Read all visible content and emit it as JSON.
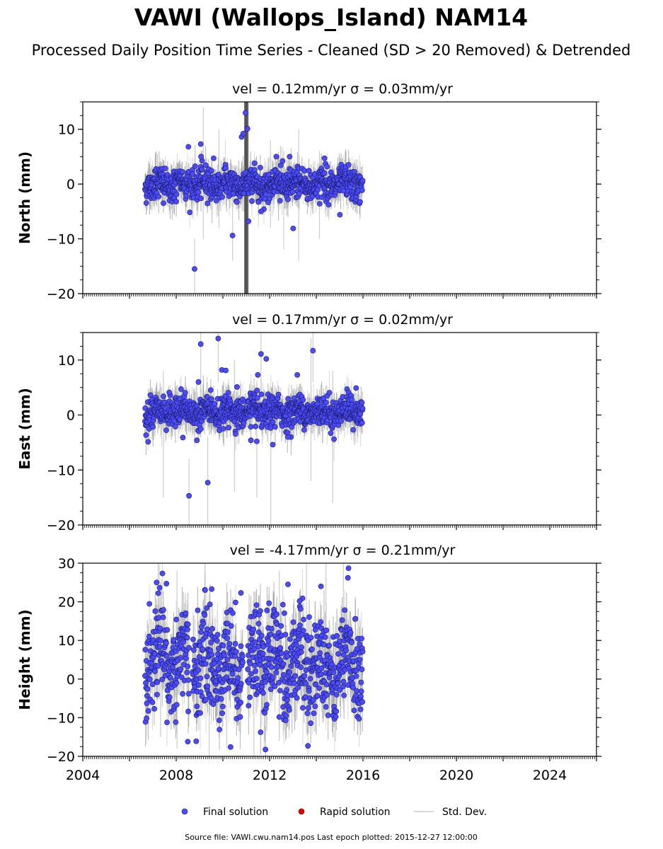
{
  "chart_data": {
    "type": "scatter",
    "title": "VAWI (Wallops_Island) NAM14",
    "subtitle": "Processed Daily Position Time Series - Cleaned (SD > 20 Removed) & Detrended",
    "x_axis": {
      "range": [
        "2004-01-01",
        "2026-01-01"
      ],
      "tick_labels": [
        "2004",
        "2008",
        "2012",
        "2016",
        "2020",
        "2024"
      ]
    },
    "data_span": [
      "2006-09-01",
      "2015-12-27"
    ],
    "panels": [
      {
        "title": "vel = 0.12mm/yr   σ = 0.03mm/yr",
        "ylabel": "North (mm)",
        "ylim": [
          -20,
          15
        ],
        "yticks": [
          -20,
          -10,
          0,
          10
        ],
        "yticklabels": [
          "−20",
          "−10",
          "0",
          "10"
        ],
        "scatter_sd": 1.4,
        "outliers": [
          {
            "x": "2007-06-15",
            "y": -3.5
          },
          {
            "x": "2008-07-10",
            "y": 6.8
          },
          {
            "x": "2008-10-15",
            "y": -15.5
          },
          {
            "x": "2009-01-20",
            "y": 7.3
          },
          {
            "x": "2009-01-25",
            "y": 5.0
          },
          {
            "x": "2009-08-10",
            "y": 4.7
          },
          {
            "x": "2010-06-01",
            "y": -9.4
          },
          {
            "x": "2010-10-20",
            "y": 8.6
          },
          {
            "x": "2010-11-15",
            "y": 9.2
          },
          {
            "x": "2010-12-20",
            "y": 13.0
          },
          {
            "x": "2011-01-20",
            "y": 10.1
          },
          {
            "x": "2011-02-05",
            "y": -6.8
          },
          {
            "x": "2011-05-10",
            "y": 3.8
          },
          {
            "x": "2011-08-20",
            "y": -5.0
          },
          {
            "x": "2012-04-15",
            "y": 5.0
          },
          {
            "x": "2012-11-10",
            "y": 5.0
          },
          {
            "x": "2013-01-05",
            "y": -8.1
          },
          {
            "x": "2014-05-10",
            "y": 4.7
          },
          {
            "x": "2015-01-05",
            "y": -5.6
          }
        ],
        "error_spikes": [
          {
            "x": "2008-10-15",
            "lo": -20,
            "hi": -10
          },
          {
            "x": "2009-03-01",
            "lo": -10,
            "hi": 14
          },
          {
            "x": "2009-11-01",
            "lo": -8,
            "hi": 10
          },
          {
            "x": "2010-06-01",
            "lo": -14,
            "hi": 2
          },
          {
            "x": "2011-02-05",
            "lo": -20,
            "hi": 15
          },
          {
            "x": "2012-01-15",
            "lo": -8,
            "hi": 8
          },
          {
            "x": "2012-08-10",
            "lo": -12,
            "hi": 6
          },
          {
            "x": "2013-04-01",
            "lo": -14,
            "hi": 10
          },
          {
            "x": "2014-02-20",
            "lo": -10,
            "hi": 6
          }
        ]
      },
      {
        "title": "vel = 0.17mm/yr   σ = 0.02mm/yr",
        "ylabel": "East (mm)",
        "ylim": [
          -20,
          15
        ],
        "yticks": [
          -20,
          -10,
          0,
          10
        ],
        "yticklabels": [
          "−20",
          "−10",
          "0",
          "10"
        ],
        "scatter_sd": 1.3,
        "outliers": [
          {
            "x": "2007-09-15",
            "y": 4.1
          },
          {
            "x": "2008-04-15",
            "y": -4.1
          },
          {
            "x": "2008-07-20",
            "y": -14.7
          },
          {
            "x": "2008-11-20",
            "y": -4.6
          },
          {
            "x": "2008-12-15",
            "y": 6.0
          },
          {
            "x": "2009-01-20",
            "y": 12.9
          },
          {
            "x": "2009-05-10",
            "y": -12.3
          },
          {
            "x": "2009-10-20",
            "y": 13.9
          },
          {
            "x": "2009-12-15",
            "y": 8.2
          },
          {
            "x": "2010-02-15",
            "y": 8.1
          },
          {
            "x": "2010-04-01",
            "y": -2.3
          },
          {
            "x": "2010-08-10",
            "y": 5.1
          },
          {
            "x": "2011-03-15",
            "y": -4.6
          },
          {
            "x": "2011-06-15",
            "y": -4.8
          },
          {
            "x": "2011-07-01",
            "y": 7.3
          },
          {
            "x": "2011-08-20",
            "y": 11.1
          },
          {
            "x": "2011-11-10",
            "y": 10.2
          },
          {
            "x": "2012-02-20",
            "y": -5.4
          },
          {
            "x": "2012-10-15",
            "y": -4.0
          },
          {
            "x": "2013-03-10",
            "y": 7.3
          },
          {
            "x": "2013-11-10",
            "y": 11.7
          },
          {
            "x": "2014-08-15",
            "y": -3.3
          },
          {
            "x": "2015-09-15",
            "y": 4.9
          }
        ],
        "error_spikes": [
          {
            "x": "2007-06-15",
            "lo": -15,
            "hi": 8
          },
          {
            "x": "2008-07-20",
            "lo": -20,
            "hi": -8
          },
          {
            "x": "2009-01-20",
            "lo": 4,
            "hi": 15
          },
          {
            "x": "2009-05-10",
            "lo": -20,
            "hi": -4
          },
          {
            "x": "2009-10-20",
            "lo": 6,
            "hi": 15
          },
          {
            "x": "2010-07-01",
            "lo": -14,
            "hi": 10
          },
          {
            "x": "2011-06-15",
            "lo": -15,
            "hi": 6
          },
          {
            "x": "2011-08-20",
            "lo": 4,
            "hi": 15
          },
          {
            "x": "2012-01-20",
            "lo": -20,
            "hi": 5
          },
          {
            "x": "2013-10-10",
            "lo": -12,
            "hi": 14
          },
          {
            "x": "2013-11-10",
            "lo": 6,
            "hi": 15
          },
          {
            "x": "2014-09-15",
            "lo": -16,
            "hi": 8
          }
        ]
      },
      {
        "title": "vel = -4.17mm/yr   σ = 0.21mm/yr",
        "ylabel": "Height (mm)",
        "ylim": [
          -20,
          30
        ],
        "yticks": [
          -20,
          -10,
          0,
          10,
          20,
          30
        ],
        "yticklabels": [
          "−20",
          "−10",
          "0",
          "10",
          "20",
          "30"
        ],
        "scatter_sd": 6.5,
        "outliers": [
          {
            "x": "2007-03-01",
            "y": 25.0
          },
          {
            "x": "2007-08-01",
            "y": 24.7
          },
          {
            "x": "2008-07-01",
            "y": -16.2
          },
          {
            "x": "2008-11-10",
            "y": -16.1
          },
          {
            "x": "2009-07-10",
            "y": 23.3
          },
          {
            "x": "2010-05-01",
            "y": -17.6
          },
          {
            "x": "2010-10-10",
            "y": 22.3
          },
          {
            "x": "2012-10-15",
            "y": 24.5
          },
          {
            "x": "2013-04-15",
            "y": 20.2
          },
          {
            "x": "2014-03-15",
            "y": 24.0
          },
          {
            "x": "2015-05-20",
            "y": 28.7
          },
          {
            "x": "2015-05-10",
            "y": 26.2
          }
        ],
        "error_spikes": [
          {
            "x": "2007-05-01",
            "lo": -15,
            "hi": 25
          },
          {
            "x": "2008-01-15",
            "lo": -18,
            "hi": 28
          },
          {
            "x": "2009-06-01",
            "lo": -20,
            "hi": 22
          },
          {
            "x": "2010-03-01",
            "lo": -18,
            "hi": 25
          },
          {
            "x": "2011-05-01",
            "lo": -20,
            "hi": 20
          },
          {
            "x": "2012-06-01",
            "lo": -16,
            "hi": 28
          },
          {
            "x": "2013-08-01",
            "lo": -14,
            "hi": 30
          },
          {
            "x": "2014-06-01",
            "lo": -10,
            "hi": 30
          },
          {
            "x": "2015-03-01",
            "lo": -8,
            "hi": 30
          }
        ]
      }
    ],
    "legend": {
      "position": "bottom-center",
      "entries": [
        {
          "label": "Final solution",
          "marker": "circle",
          "color": "#4a4aff"
        },
        {
          "label": "Rapid solution",
          "marker": "circle",
          "color": "#e00000"
        },
        {
          "label": "Std. Dev.",
          "marker": "line",
          "color": "#cccccc"
        }
      ]
    },
    "footer": "Source file: VAWI.cwu.nam14.pos  Last epoch plotted: 2015-12-27 12:00:00",
    "colors": {
      "final": "#4a4aff",
      "final_edge": "#1a1a5a",
      "rapid": "#e00000",
      "stddev": "#cccccc",
      "stddev_dark": "#555555"
    }
  }
}
